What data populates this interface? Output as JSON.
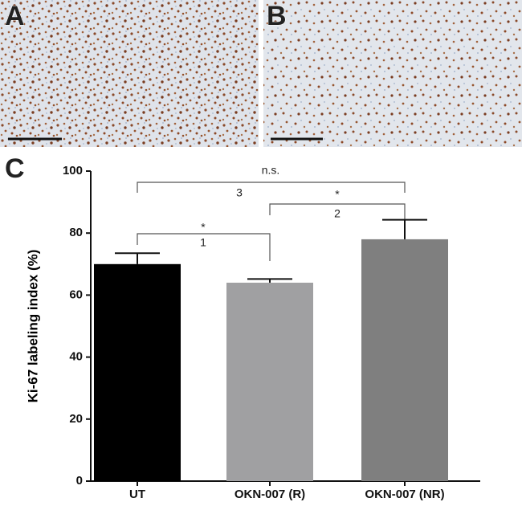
{
  "panel_labels": [
    "A",
    "B",
    "C"
  ],
  "chart_data": {
    "type": "bar",
    "y_label": "Ki-67 labeling index (%)",
    "categories": [
      "UT",
      "OKN-007 (R)",
      "OKN-007 (NR)"
    ],
    "values": [
      70,
      64,
      78
    ],
    "errors": [
      3.5,
      1.2,
      6.3
    ],
    "colors": [
      "#000000",
      "#a0a0a2",
      "#7f7f7f"
    ],
    "ylim": [
      0,
      100
    ],
    "yticks": [
      0,
      20,
      40,
      60,
      80,
      100
    ],
    "annotations": [
      {
        "label": "*",
        "number": "1"
      },
      {
        "label": "*",
        "number": "2"
      },
      {
        "label": "n.s.",
        "number": "3"
      }
    ]
  }
}
